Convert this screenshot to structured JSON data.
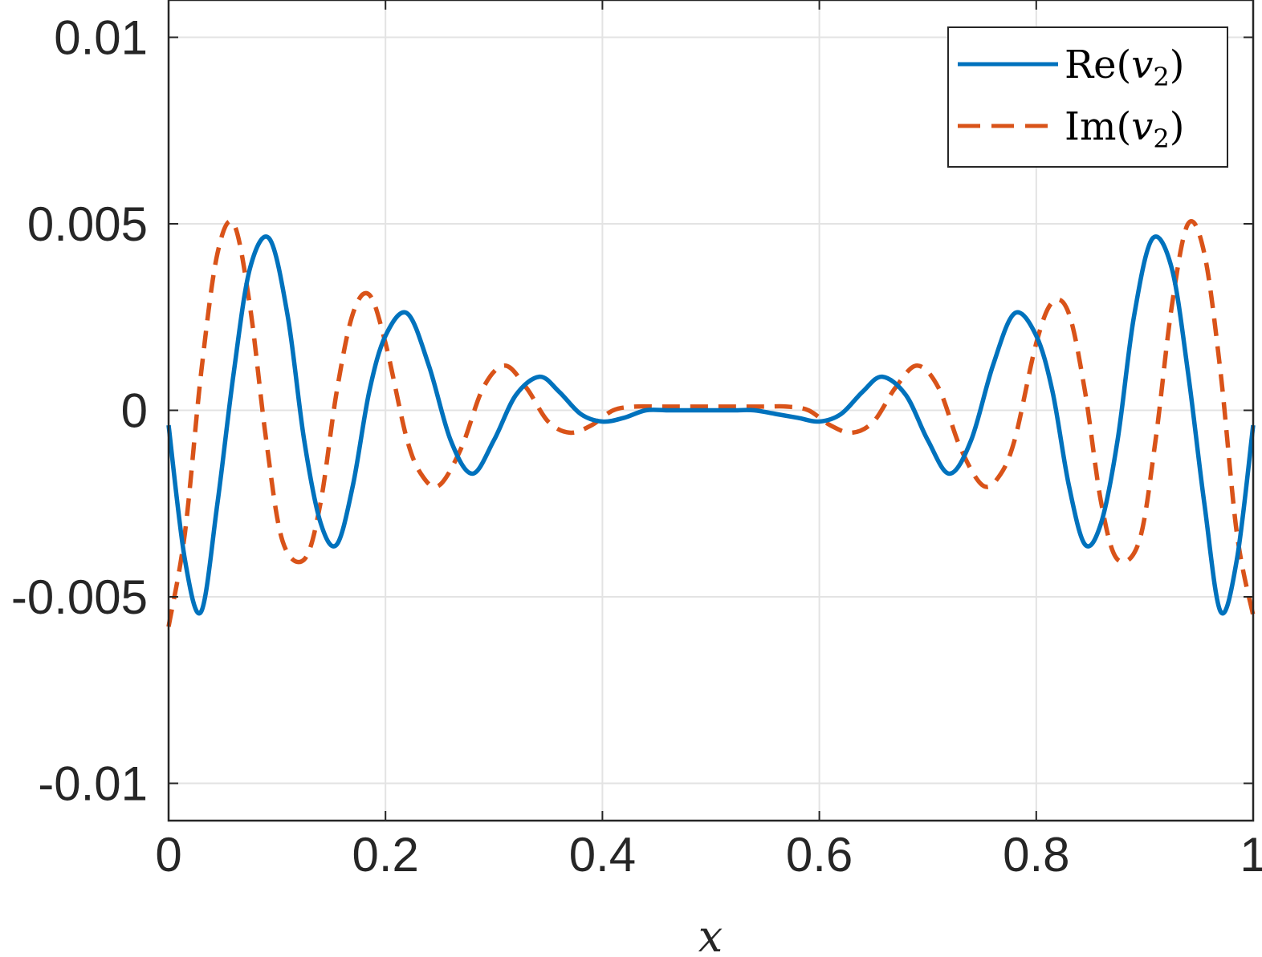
{
  "chart_data": {
    "type": "line",
    "xlabel": "x",
    "ylabel": "",
    "xlim": [
      0,
      1
    ],
    "ylim": [
      -0.011,
      0.011
    ],
    "grid": true,
    "legend_position": "top-right",
    "x_ticks": [
      0,
      0.2,
      0.4,
      0.6,
      0.8,
      1
    ],
    "x_tick_labels": [
      "0",
      "0.2",
      "0.4",
      "0.6",
      "0.8",
      "1"
    ],
    "y_ticks": [
      -0.01,
      -0.005,
      0,
      0.005,
      0.01
    ],
    "y_tick_labels": [
      "-0.01",
      "-0.005",
      "0",
      "0.005",
      "0.01"
    ],
    "series": [
      {
        "name": "Re(v2)",
        "legend_label": {
          "prefix": "Re(",
          "var": "v",
          "sub": "2",
          "suffix": ")"
        },
        "color": "#0072BD",
        "style": "solid",
        "x": [
          0,
          0.015,
          0.03,
          0.045,
          0.06,
          0.075,
          0.093,
          0.11,
          0.125,
          0.14,
          0.155,
          0.17,
          0.185,
          0.2,
          0.22,
          0.24,
          0.26,
          0.28,
          0.3,
          0.32,
          0.342,
          0.36,
          0.38,
          0.4,
          0.42,
          0.44,
          0.46,
          0.48,
          0.5,
          0.52,
          0.54,
          0.56,
          0.58,
          0.6,
          0.62,
          0.64,
          0.658,
          0.68,
          0.7,
          0.72,
          0.74,
          0.76,
          0.78,
          0.8,
          0.815,
          0.83,
          0.845,
          0.86,
          0.875,
          0.89,
          0.907,
          0.925,
          0.94,
          0.955,
          0.97,
          0.985,
          1
        ],
        "y": [
          -0.0004,
          -0.004,
          -0.0054,
          -0.0025,
          0.001,
          0.0038,
          0.0046,
          0.0025,
          -0.0008,
          -0.003,
          -0.0036,
          -0.002,
          0.0005,
          0.002,
          0.0026,
          0.0012,
          -0.0008,
          -0.0017,
          -0.0008,
          0.0004,
          0.0009,
          0.0005,
          -0.0001,
          -0.0003,
          -0.0002,
          0.0,
          0.0,
          0.0,
          0.0,
          0.0,
          0.0,
          -0.0001,
          -0.0002,
          -0.0003,
          -0.0001,
          0.0005,
          0.0009,
          0.0004,
          -0.0008,
          -0.0017,
          -0.0008,
          0.0012,
          0.0026,
          0.002,
          0.0005,
          -0.002,
          -0.0036,
          -0.003,
          -0.0008,
          0.0025,
          0.0046,
          0.0038,
          0.001,
          -0.0025,
          -0.0054,
          -0.004,
          -0.0004
        ]
      },
      {
        "name": "Im(v2)",
        "legend_label": {
          "prefix": "Im(",
          "var": "v",
          "sub": "2",
          "suffix": ")"
        },
        "color": "#D95319",
        "style": "dashed",
        "x": [
          0,
          0.015,
          0.03,
          0.045,
          0.06,
          0.075,
          0.09,
          0.105,
          0.125,
          0.14,
          0.155,
          0.17,
          0.185,
          0.2,
          0.22,
          0.235,
          0.25,
          0.27,
          0.29,
          0.31,
          0.33,
          0.35,
          0.37,
          0.39,
          0.41,
          0.43,
          0.45,
          0.47,
          0.5,
          0.53,
          0.55,
          0.57,
          0.59,
          0.61,
          0.63,
          0.65,
          0.67,
          0.69,
          0.71,
          0.73,
          0.75,
          0.765,
          0.78,
          0.8,
          0.815,
          0.83,
          0.845,
          0.86,
          0.875,
          0.895,
          0.91,
          0.925,
          0.94,
          0.955,
          0.97,
          0.985,
          1
        ],
        "y": [
          -0.0058,
          -0.0033,
          0.001,
          0.0042,
          0.005,
          0.0028,
          -0.0008,
          -0.0035,
          -0.004,
          -0.0025,
          0.0005,
          0.0026,
          0.0031,
          0.0018,
          -0.0008,
          -0.0018,
          -0.002,
          -0.001,
          0.0006,
          0.0012,
          0.0006,
          -0.0003,
          -0.0006,
          -0.0004,
          0.0,
          0.0001,
          0.0001,
          0.0001,
          0.0001,
          0.0001,
          0.0001,
          0.0001,
          0.0,
          -0.0004,
          -0.0006,
          -0.0003,
          0.0006,
          0.0012,
          0.0006,
          -0.001,
          -0.002,
          -0.0018,
          -0.0008,
          0.0018,
          0.0029,
          0.0026,
          0.0005,
          -0.0025,
          -0.004,
          -0.0035,
          -0.0008,
          0.0028,
          0.005,
          0.0042,
          0.001,
          -0.0033,
          -0.0055
        ]
      }
    ]
  }
}
